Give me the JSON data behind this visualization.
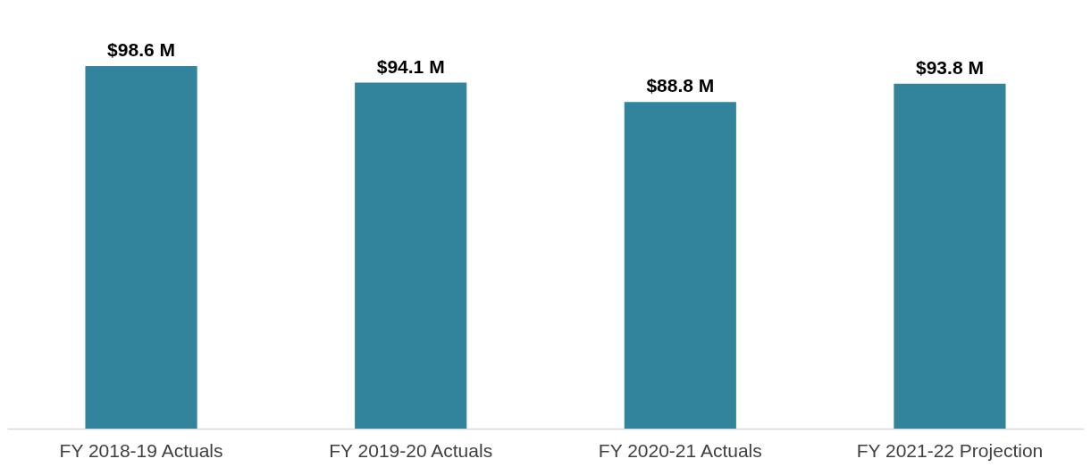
{
  "chart_data": {
    "type": "bar",
    "categories": [
      "FY 2018-19 Actuals",
      "FY 2019-20 Actuals",
      "FY 2020-21 Actuals",
      "FY 2021-22 Projection"
    ],
    "values": [
      98.6,
      94.1,
      88.8,
      93.8
    ],
    "value_labels": [
      "$98.6 M",
      "$94.1 M",
      "$88.8 M",
      "$93.8 M"
    ],
    "color": "#31849b",
    "grid": false
  }
}
